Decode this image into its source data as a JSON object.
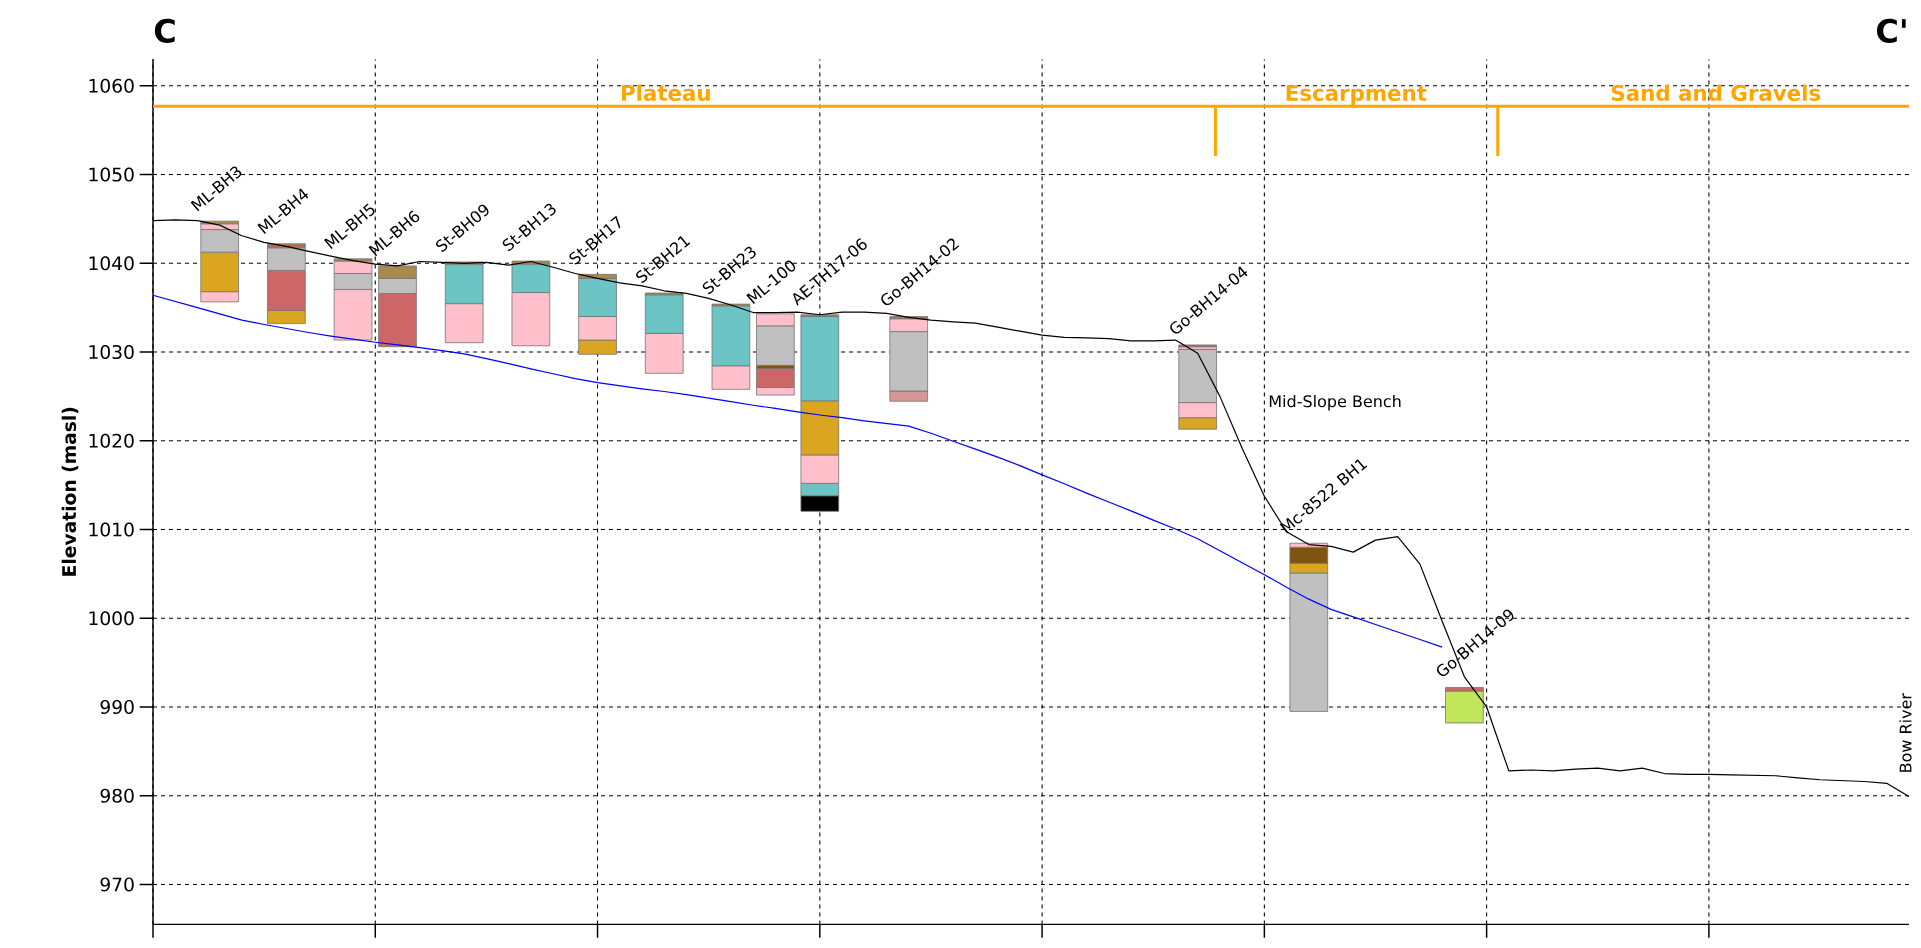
{
  "chart_data": {
    "type": "bar",
    "ylabel": "Elevation (masl)",
    "ylim": [
      965.5,
      1063
    ],
    "yticks": [
      970,
      980,
      990,
      1000,
      1010,
      1020,
      1030,
      1040,
      1050,
      1060
    ],
    "grid": true,
    "tick_labels": "y",
    "categories": [
      null,
      null,
      null,
      null,
      null,
      null,
      null,
      null,
      null,
      null,
      null,
      null,
      null,
      null,
      null,
      null,
      null,
      null,
      null,
      null,
      null,
      null,
      null,
      null,
      null,
      null,
      null,
      null,
      null,
      null,
      null,
      null,
      null,
      null,
      null,
      null,
      null,
      null,
      null,
      null,
      null,
      null,
      null,
      null,
      null,
      null,
      null,
      null,
      null,
      null,
      null,
      null,
      null,
      null,
      null,
      null,
      null,
      null,
      null,
      null,
      null,
      null,
      null,
      null,
      null,
      null,
      null,
      null,
      null,
      null,
      null,
      null,
      null,
      null,
      null,
      null,
      null,
      null,
      null,
      null
    ],
    "series": [
      {
        "type": "line",
        "color": "#000000",
        "values": [
          1044.8,
          1044.9,
          1044.8,
          1044.3,
          1043.1,
          1042.35,
          1041.9,
          1041.35,
          1040.8,
          1040.3,
          1039.9,
          1039.7,
          1040.2,
          1040.1,
          1040.0,
          1040.1,
          1039.8,
          1040.2,
          1039.55,
          1038.85,
          1038.3,
          1037.8,
          1037.45,
          1036.9,
          1036.6,
          1036.05,
          1035.3,
          1034.45,
          1034.45,
          1034.5,
          1034.2,
          1034.5,
          1034.5,
          1034.35,
          1033.9,
          1033.6,
          1033.4,
          1033.25,
          1032.8,
          1032.35,
          1031.9,
          1031.65,
          1031.6,
          1031.5,
          1031.25,
          1031.25,
          1031.35,
          1029.85,
          1025.0,
          1019.15,
          1013.75,
          1009.75,
          1008.3,
          1008.1,
          1007.45,
          1008.8,
          1009.2,
          1006.1,
          999.65,
          993.4,
          990.0,
          982.8,
          982.9,
          982.8,
          983.0,
          983.1,
          982.8,
          983.1,
          982.5,
          982.4,
          982.4,
          982.35,
          982.3,
          982.25,
          982.0,
          981.8,
          981.7,
          981.6,
          981.4,
          979.9
        ]
      },
      {
        "type": "line",
        "color": "#0000ff",
        "values": [
          1036.4,
          1035.7,
          1035.0,
          1034.3,
          1033.6,
          1033.1,
          1032.65,
          1032.2,
          1031.8,
          1031.45,
          1031.1,
          1030.8,
          1030.5,
          1030.15,
          1029.8,
          1029.25,
          1028.7,
          1028.1,
          1027.55,
          1027.0,
          1026.55,
          1026.2,
          1025.85,
          1025.55,
          1025.2,
          1024.8,
          1024.4,
          1024.0,
          1023.65,
          1023.25,
          1022.9,
          1022.6,
          1022.25,
          1021.95,
          1021.65,
          1020.85,
          1019.95,
          1019.05,
          1018.15,
          1017.2,
          1016.15,
          1015.15,
          1014.1,
          1013.1,
          1012.1,
          1011.05,
          1010.05,
          1008.95,
          1007.6,
          1006.25,
          1004.9,
          1003.5,
          1002.15,
          1001.0,
          1000.15,
          999.3,
          998.45,
          997.6,
          996.75,
          null,
          null,
          null,
          null,
          null,
          null,
          null,
          null,
          null,
          null,
          null,
          null,
          null,
          null,
          null,
          null,
          null,
          null,
          null,
          null,
          null
        ]
      },
      {
        "base": [
          null,
          null,
          null,
          1035.65,
          null,
          null,
          1033.2,
          null,
          null,
          1031.35,
          null,
          1030.6,
          null,
          null,
          1031.05,
          null,
          null,
          1030.7,
          null,
          null,
          1029.75,
          null,
          null,
          1027.6,
          null,
          null,
          1025.8,
          null,
          1025.15,
          null,
          1012.05,
          null,
          null,
          null,
          1024.45,
          null,
          null,
          null,
          null,
          null,
          null,
          null,
          null,
          null,
          null,
          null,
          null,
          1021.3,
          null,
          null,
          null,
          null,
          989.5,
          null,
          null,
          null,
          null,
          null,
          null,
          988.2,
          null,
          null,
          null,
          null,
          null,
          null,
          null,
          null,
          null,
          null,
          null,
          null,
          null,
          null,
          null,
          null,
          null,
          null,
          null,
          null
        ],
        "values": [
          null,
          null,
          null,
          1.15,
          null,
          null,
          1.5,
          null,
          null,
          5.7,
          null,
          6.0,
          null,
          null,
          4.4,
          null,
          null,
          6.0,
          null,
          null,
          1.6,
          null,
          null,
          4.5,
          null,
          null,
          2.65,
          null,
          0.85,
          null,
          1.75,
          null,
          null,
          null,
          1.15,
          null,
          null,
          null,
          null,
          null,
          null,
          null,
          null,
          null,
          null,
          null,
          null,
          1.3,
          null,
          null,
          null,
          null,
          15.6,
          null,
          null,
          null,
          null,
          null,
          null,
          3.6,
          null,
          null,
          null,
          null,
          null,
          null,
          null,
          null,
          null,
          null,
          null,
          null,
          null,
          null,
          null,
          null,
          null,
          null,
          null,
          null
        ],
        "colors": [
          null,
          null,
          null,
          "#ffc0cb",
          null,
          null,
          "#daa520",
          null,
          null,
          "#ffc0cb",
          null,
          "#cd6666",
          null,
          null,
          "#ffc0cb",
          null,
          null,
          "#ffc0cb",
          null,
          null,
          "#daa520",
          null,
          null,
          "#ffc0cb",
          null,
          null,
          "#ffc0cb",
          null,
          "#ffc0cb",
          null,
          "#000000",
          null,
          null,
          null,
          "#d89696",
          null,
          null,
          null,
          null,
          null,
          null,
          null,
          null,
          null,
          null,
          null,
          null,
          "#daa520",
          null,
          null,
          null,
          null,
          "#c0c0c0",
          null,
          null,
          null,
          null,
          null,
          null,
          "#c2e65a",
          null,
          null,
          null,
          null,
          null,
          null,
          null,
          null,
          null,
          null,
          null,
          null,
          null,
          null,
          null,
          null,
          null,
          null,
          null,
          null
        ]
      },
      {
        "base": [
          null,
          null,
          null,
          1036.8,
          null,
          null,
          1034.7,
          null,
          null,
          1037.05,
          null,
          1036.6,
          null,
          null,
          1035.45,
          null,
          null,
          1036.7,
          null,
          null,
          1031.35,
          null,
          null,
          1032.1,
          null,
          null,
          1028.45,
          null,
          1026.0,
          null,
          1013.8,
          null,
          null,
          null,
          1025.6,
          null,
          null,
          null,
          null,
          null,
          null,
          null,
          null,
          null,
          null,
          null,
          null,
          1022.6,
          null,
          null,
          null,
          null,
          1005.1,
          null,
          null,
          null,
          null,
          null,
          null,
          991.8,
          null,
          null,
          null,
          null,
          null,
          null,
          null,
          null,
          null,
          null,
          null,
          null,
          null,
          null,
          null,
          null,
          null,
          null,
          null,
          null
        ],
        "values": [
          null,
          null,
          null,
          4.45,
          null,
          null,
          4.5,
          null,
          null,
          1.8,
          null,
          1.7,
          null,
          null,
          4.45,
          null,
          null,
          3.2,
          null,
          null,
          2.65,
          null,
          null,
          4.35,
          null,
          null,
          6.75,
          null,
          2.15,
          null,
          1.4,
          null,
          null,
          null,
          6.7,
          null,
          null,
          null,
          null,
          null,
          null,
          null,
          null,
          null,
          null,
          null,
          null,
          1.7,
          null,
          null,
          null,
          null,
          1.1,
          null,
          null,
          null,
          null,
          null,
          null,
          0.4,
          null,
          null,
          null,
          null,
          null,
          null,
          null,
          null,
          null,
          null,
          null,
          null,
          null,
          null,
          null,
          null,
          null,
          null,
          null,
          null
        ],
        "colors": [
          null,
          null,
          null,
          "#daa520",
          null,
          null,
          "#cd6666",
          null,
          null,
          "#c0c0c0",
          null,
          "#c0c0c0",
          null,
          null,
          "#6cc4c4",
          null,
          null,
          "#6cc4c4",
          null,
          null,
          "#ffc0cb",
          null,
          null,
          "#6cc4c4",
          null,
          null,
          "#6cc4c4",
          null,
          "#cd6666",
          null,
          "#6cc4c4",
          null,
          null,
          null,
          "#c0c0c0",
          null,
          null,
          null,
          null,
          null,
          null,
          null,
          null,
          null,
          null,
          null,
          null,
          "#ffc0cb",
          null,
          null,
          null,
          null,
          "#daa520",
          null,
          null,
          null,
          null,
          null,
          null,
          "#cd6666",
          null,
          null,
          null,
          null,
          null,
          null,
          null,
          null,
          null,
          null,
          null,
          null,
          null,
          null,
          null,
          null,
          null,
          null,
          null,
          null
        ]
      },
      {
        "base": [
          null,
          null,
          null,
          1041.25,
          null,
          null,
          1039.2,
          null,
          null,
          1038.85,
          null,
          1038.3,
          null,
          null,
          1039.9,
          null,
          null,
          1039.9,
          null,
          null,
          1034.0,
          null,
          null,
          1036.45,
          null,
          null,
          1035.2,
          null,
          1028.15,
          null,
          1015.2,
          null,
          null,
          null,
          1032.3,
          null,
          null,
          null,
          null,
          null,
          null,
          null,
          null,
          null,
          null,
          null,
          null,
          1024.3,
          null,
          null,
          null,
          null,
          1006.2,
          null,
          null,
          null,
          null,
          null,
          null,
          null,
          null,
          null,
          null,
          null,
          null,
          null,
          null,
          null,
          null,
          null,
          null,
          null,
          null,
          null,
          null,
          null,
          null,
          null,
          null,
          null
        ],
        "values": [
          null,
          null,
          null,
          2.55,
          null,
          null,
          2.55,
          null,
          null,
          1.4,
          null,
          1.4,
          null,
          null,
          0.25,
          null,
          null,
          0.35,
          null,
          null,
          4.3,
          null,
          null,
          0.2,
          null,
          null,
          0.2,
          null,
          0.35,
          null,
          3.2,
          null,
          null,
          null,
          1.45,
          null,
          null,
          null,
          null,
          null,
          null,
          null,
          null,
          null,
          null,
          null,
          null,
          6.0,
          null,
          null,
          null,
          null,
          1.8,
          null,
          null,
          null,
          null,
          null,
          null,
          null,
          null,
          null,
          null,
          null,
          null,
          null,
          null,
          null,
          null,
          null,
          null,
          null,
          null,
          null,
          null,
          null,
          null,
          null,
          null,
          null
        ],
        "colors": [
          null,
          null,
          null,
          "#c0c0c0",
          null,
          null,
          "#c0c0c0",
          null,
          null,
          "#ffc0cb",
          null,
          "#a88a4e",
          null,
          null,
          "#a88a4e",
          null,
          null,
          "#a88a4e",
          null,
          null,
          "#6cc4c4",
          null,
          null,
          "#a88a4e",
          null,
          null,
          "#a88a4e",
          null,
          "#7f5412",
          null,
          "#ffc0cb",
          null,
          null,
          null,
          "#ffc0cb",
          null,
          null,
          null,
          null,
          null,
          null,
          null,
          null,
          null,
          null,
          null,
          null,
          "#c0c0c0",
          null,
          null,
          null,
          null,
          "#7f5412",
          null,
          null,
          null,
          null,
          null,
          null,
          null,
          null,
          null,
          null,
          null,
          null,
          null,
          null,
          null,
          null,
          null,
          null,
          null,
          null,
          null,
          null,
          null,
          null,
          null,
          null,
          null
        ]
      },
      {
        "base": [
          null,
          null,
          null,
          1043.8,
          null,
          null,
          1041.75,
          null,
          null,
          1040.25,
          null,
          null,
          null,
          null,
          null,
          null,
          null,
          null,
          null,
          null,
          1038.3,
          null,
          null,
          null,
          null,
          null,
          null,
          null,
          1028.5,
          null,
          1018.4,
          null,
          null,
          null,
          1033.75,
          null,
          null,
          null,
          null,
          null,
          null,
          null,
          null,
          null,
          null,
          null,
          null,
          1030.3,
          null,
          null,
          null,
          null,
          1008.0,
          null,
          null,
          null,
          null,
          null,
          null,
          null,
          null,
          null,
          null,
          null,
          null,
          null,
          null,
          null,
          null,
          null,
          null,
          null,
          null,
          null,
          null,
          null,
          null,
          null,
          null,
          null
        ],
        "values": [
          null,
          null,
          null,
          0.65,
          null,
          null,
          0.25,
          null,
          null,
          0.25,
          null,
          null,
          null,
          null,
          null,
          null,
          null,
          null,
          null,
          null,
          0.45,
          null,
          null,
          null,
          null,
          null,
          null,
          null,
          4.45,
          null,
          6.1,
          null,
          null,
          null,
          0.25,
          null,
          null,
          null,
          null,
          null,
          null,
          null,
          null,
          null,
          null,
          null,
          null,
          0.3,
          null,
          null,
          null,
          null,
          0.45,
          null,
          null,
          null,
          null,
          null,
          null,
          null,
          null,
          null,
          null,
          null,
          null,
          null,
          null,
          null,
          null,
          null,
          null,
          null,
          null,
          null,
          null,
          null,
          null,
          null,
          null,
          null
        ],
        "colors": [
          null,
          null,
          null,
          "#ffc0cb",
          null,
          null,
          "#cd6666",
          null,
          null,
          "#a88a4e",
          null,
          null,
          null,
          null,
          null,
          null,
          null,
          null,
          null,
          null,
          "#a88a4e",
          null,
          null,
          null,
          null,
          null,
          null,
          null,
          "#c0c0c0",
          null,
          "#daa520",
          null,
          null,
          null,
          "#cd6666",
          null,
          null,
          null,
          null,
          null,
          null,
          null,
          null,
          null,
          null,
          null,
          null,
          "#ffc0cb",
          null,
          null,
          null,
          null,
          "#ffc0cb",
          null,
          null,
          null,
          null,
          null,
          null,
          null,
          null,
          null,
          null,
          null,
          null,
          null,
          null,
          null,
          null,
          null,
          null,
          null,
          null,
          null,
          null,
          null,
          null,
          null,
          null,
          null
        ]
      },
      {
        "base": [
          null,
          null,
          null,
          1044.45,
          null,
          null,
          1042.0,
          null,
          null,
          null,
          null,
          null,
          null,
          null,
          null,
          null,
          null,
          null,
          null,
          null,
          null,
          null,
          null,
          null,
          null,
          null,
          null,
          null,
          1032.95,
          null,
          1024.5,
          null,
          null,
          null,
          null,
          null,
          null,
          null,
          null,
          null,
          null,
          null,
          null,
          null,
          null,
          null,
          null,
          1030.6,
          null,
          null,
          null,
          null,
          null,
          null,
          null,
          null,
          null,
          null,
          null,
          null,
          null,
          null,
          null,
          null,
          null,
          null,
          null,
          null,
          null,
          null,
          null,
          null,
          null,
          null,
          null,
          null,
          null,
          null,
          null,
          null
        ],
        "values": [
          null,
          null,
          null,
          0.3,
          null,
          null,
          0.2,
          null,
          null,
          null,
          null,
          null,
          null,
          null,
          null,
          null,
          null,
          null,
          null,
          null,
          null,
          null,
          null,
          null,
          null,
          null,
          null,
          null,
          1.35,
          null,
          9.5,
          null,
          null,
          null,
          null,
          null,
          null,
          null,
          null,
          null,
          null,
          null,
          null,
          null,
          null,
          null,
          null,
          0.2,
          null,
          null,
          null,
          null,
          null,
          null,
          null,
          null,
          null,
          null,
          null,
          null,
          null,
          null,
          null,
          null,
          null,
          null,
          null,
          null,
          null,
          null,
          null,
          null,
          null,
          null,
          null,
          null,
          null,
          null,
          null,
          null
        ],
        "colors": [
          null,
          null,
          null,
          "#a88a4e",
          null,
          null,
          "#a88a4e",
          null,
          null,
          null,
          null,
          null,
          null,
          null,
          null,
          null,
          null,
          null,
          null,
          null,
          null,
          null,
          null,
          null,
          null,
          null,
          null,
          null,
          "#ffc0cb",
          null,
          "#6cc4c4",
          null,
          null,
          null,
          null,
          null,
          null,
          null,
          null,
          null,
          null,
          null,
          null,
          null,
          null,
          null,
          null,
          "#cd6666",
          null,
          null,
          null,
          null,
          null,
          null,
          null,
          null,
          null,
          null,
          null,
          null,
          null,
          null,
          null,
          null,
          null,
          null,
          null,
          null,
          null,
          null,
          null,
          null,
          null,
          null,
          null,
          null,
          null,
          null,
          null,
          null
        ]
      },
      {
        "base": [
          null,
          null,
          null,
          null,
          null,
          null,
          null,
          null,
          null,
          null,
          null,
          null,
          null,
          null,
          null,
          null,
          null,
          null,
          null,
          null,
          null,
          null,
          null,
          null,
          null,
          null,
          null,
          null,
          null,
          null,
          1034.0,
          null,
          null,
          null,
          null,
          null,
          null,
          null,
          null,
          null,
          null,
          null,
          null,
          null,
          null,
          null,
          null,
          null,
          null,
          null,
          null,
          null,
          null,
          null,
          null,
          null,
          null,
          null,
          null,
          null,
          null,
          null,
          null,
          null,
          null,
          null,
          null,
          null,
          null,
          null,
          null,
          null,
          null,
          null,
          null,
          null,
          null,
          null,
          null,
          null
        ],
        "values": [
          null,
          null,
          null,
          null,
          null,
          null,
          null,
          null,
          null,
          null,
          null,
          null,
          null,
          null,
          null,
          null,
          null,
          null,
          null,
          null,
          null,
          null,
          null,
          null,
          null,
          null,
          null,
          null,
          null,
          null,
          0.2,
          null,
          null,
          null,
          null,
          null,
          null,
          null,
          null,
          null,
          null,
          null,
          null,
          null,
          null,
          null,
          null,
          null,
          null,
          null,
          null,
          null,
          null,
          null,
          null,
          null,
          null,
          null,
          null,
          null,
          null,
          null,
          null,
          null,
          null,
          null,
          null,
          null,
          null,
          null,
          null,
          null,
          null,
          null,
          null,
          null,
          null,
          null,
          null,
          null
        ],
        "colors": [
          null,
          null,
          null,
          null,
          null,
          null,
          null,
          null,
          null,
          null,
          null,
          null,
          null,
          null,
          null,
          null,
          null,
          null,
          null,
          null,
          null,
          null,
          null,
          null,
          null,
          null,
          null,
          null,
          null,
          null,
          "#a88a4e",
          null,
          null,
          null,
          null,
          null,
          null,
          null,
          null,
          null,
          null,
          null,
          null,
          null,
          null,
          null,
          null,
          null,
          null,
          null,
          null,
          null,
          null,
          null,
          null,
          null,
          null,
          null,
          null,
          null,
          null,
          null,
          null,
          null,
          null,
          null,
          null,
          null,
          null,
          null,
          null,
          null,
          null,
          null,
          null,
          null,
          null,
          null,
          null,
          null
        ]
      }
    ],
    "ref_lines": [
      {
        "axis": "y",
        "value": 1057.7,
        "color": "#ffa500"
      }
    ],
    "annotations": [
      "C",
      "C'",
      "Plateau",
      "Escarpment",
      "Sand and Gravels",
      "Mid-Slope Bench",
      "Bow River",
      {
        "text": "ML-BH3",
        "y": 1044.75
      },
      {
        "text": "ML-BH4",
        "y": 1042.2
      },
      {
        "text": "ML-BH5",
        "y": 1040.5
      },
      {
        "text": "ML-BH6",
        "y": 1039.7
      },
      {
        "text": "St-BH09",
        "y": 1040.15
      },
      {
        "text": "St-BH13",
        "y": 1040.25
      },
      {
        "text": "St-BH17",
        "y": 1038.75
      },
      {
        "text": "St-BH21",
        "y": 1036.65
      },
      {
        "text": "St-BH23",
        "y": 1035.4
      },
      {
        "text": "ML-100",
        "y": 1034.3
      },
      {
        "text": "AE-TH17-06",
        "y": 1034.2
      },
      {
        "text": "Go-BH14-02",
        "y": 1034.0
      },
      {
        "text": "Go-BH14-04",
        "y": 1030.8
      },
      {
        "text": "Mc-8522 BH1",
        "y": 1008.45
      },
      {
        "text": "Go-BH14-09",
        "y": 992.2
      }
    ]
  }
}
